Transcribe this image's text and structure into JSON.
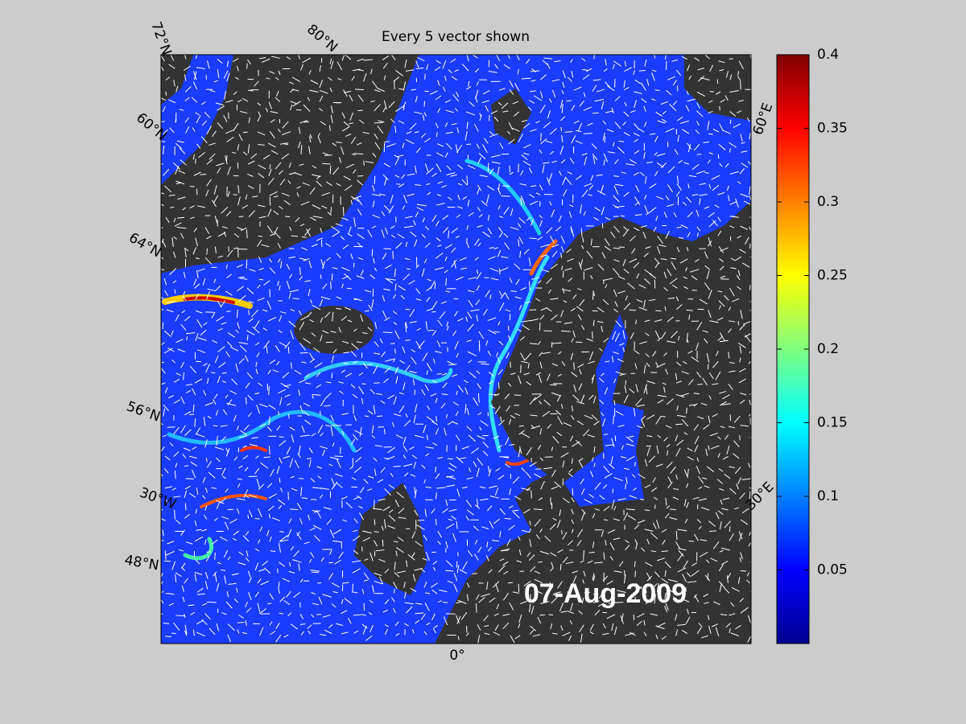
{
  "title": "Every 5 vector shown",
  "date_label": "07-Aug-2009",
  "graticule_labels": [
    "72°N",
    "80°N",
    "60°N",
    "64°N",
    "56°N",
    "30°W",
    "48°N",
    "0°",
    "30°E",
    "60°E"
  ],
  "colorbar": {
    "lim": [
      0,
      0.4
    ],
    "ticks": [
      0.05,
      0.1,
      0.15,
      0.2,
      0.25,
      0.3,
      0.35,
      0.4
    ]
  }
}
